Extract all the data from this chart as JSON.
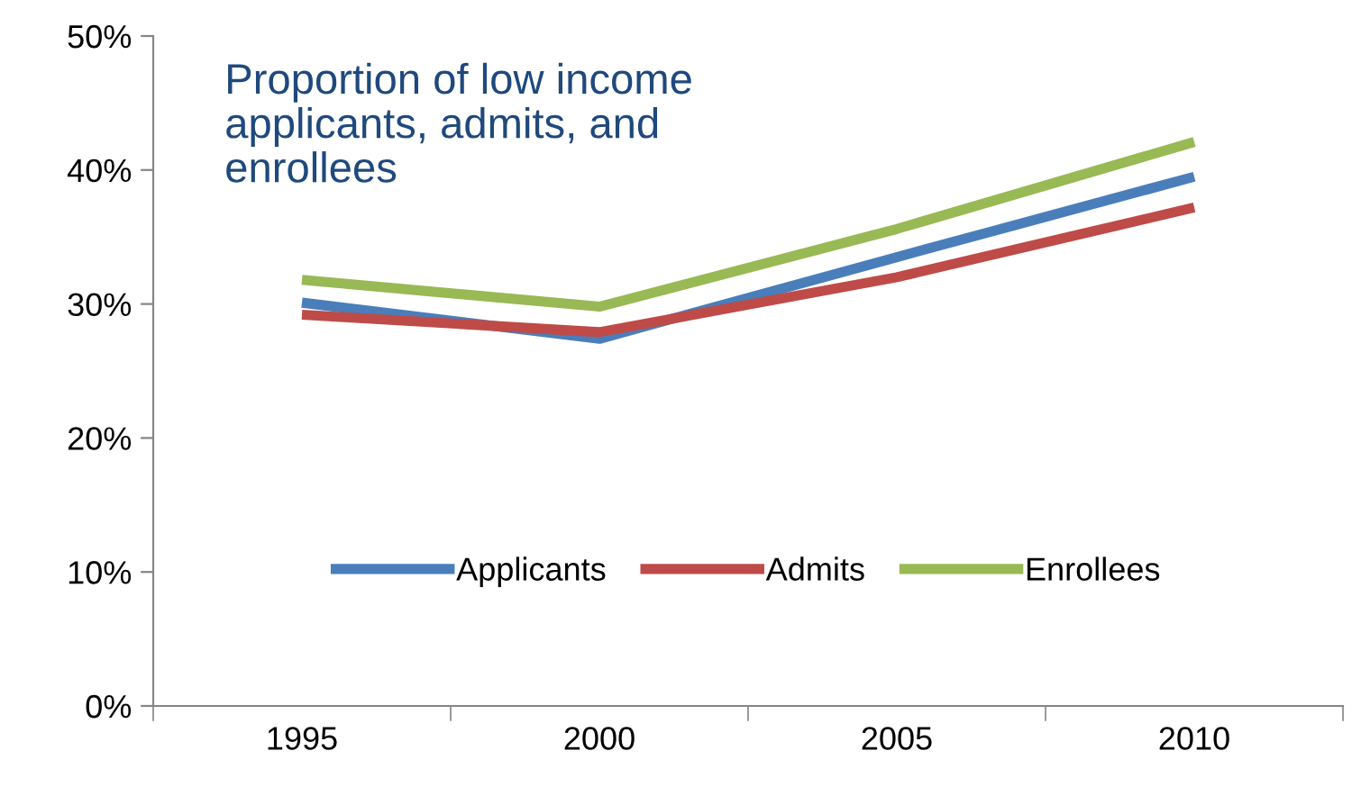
{
  "chart_data": {
    "type": "line",
    "title": "Proportion of low income\napplicants, admits, and\nenrollees",
    "categories": [
      "1995",
      "2000",
      "2005",
      "2010"
    ],
    "series": [
      {
        "name": "Applicants",
        "color": "#4a7ebb",
        "values": [
          30.1,
          27.4,
          33.5,
          39.5
        ]
      },
      {
        "name": "Admits",
        "color": "#be4b48",
        "values": [
          29.2,
          27.9,
          32.0,
          37.2
        ]
      },
      {
        "name": "Enrollees",
        "color": "#98b954",
        "values": [
          31.8,
          29.8,
          35.6,
          42.1
        ]
      }
    ],
    "ylim": [
      0,
      50
    ],
    "yticks": [
      {
        "value": 0,
        "label": "0%"
      },
      {
        "value": 10,
        "label": "10%"
      },
      {
        "value": 20,
        "label": "20%"
      },
      {
        "value": 30,
        "label": "30%"
      },
      {
        "value": 40,
        "label": "40%"
      },
      {
        "value": 50,
        "label": "50%"
      }
    ],
    "grid": false,
    "legend": "bottom",
    "marker": "none",
    "line_style": "solid"
  }
}
